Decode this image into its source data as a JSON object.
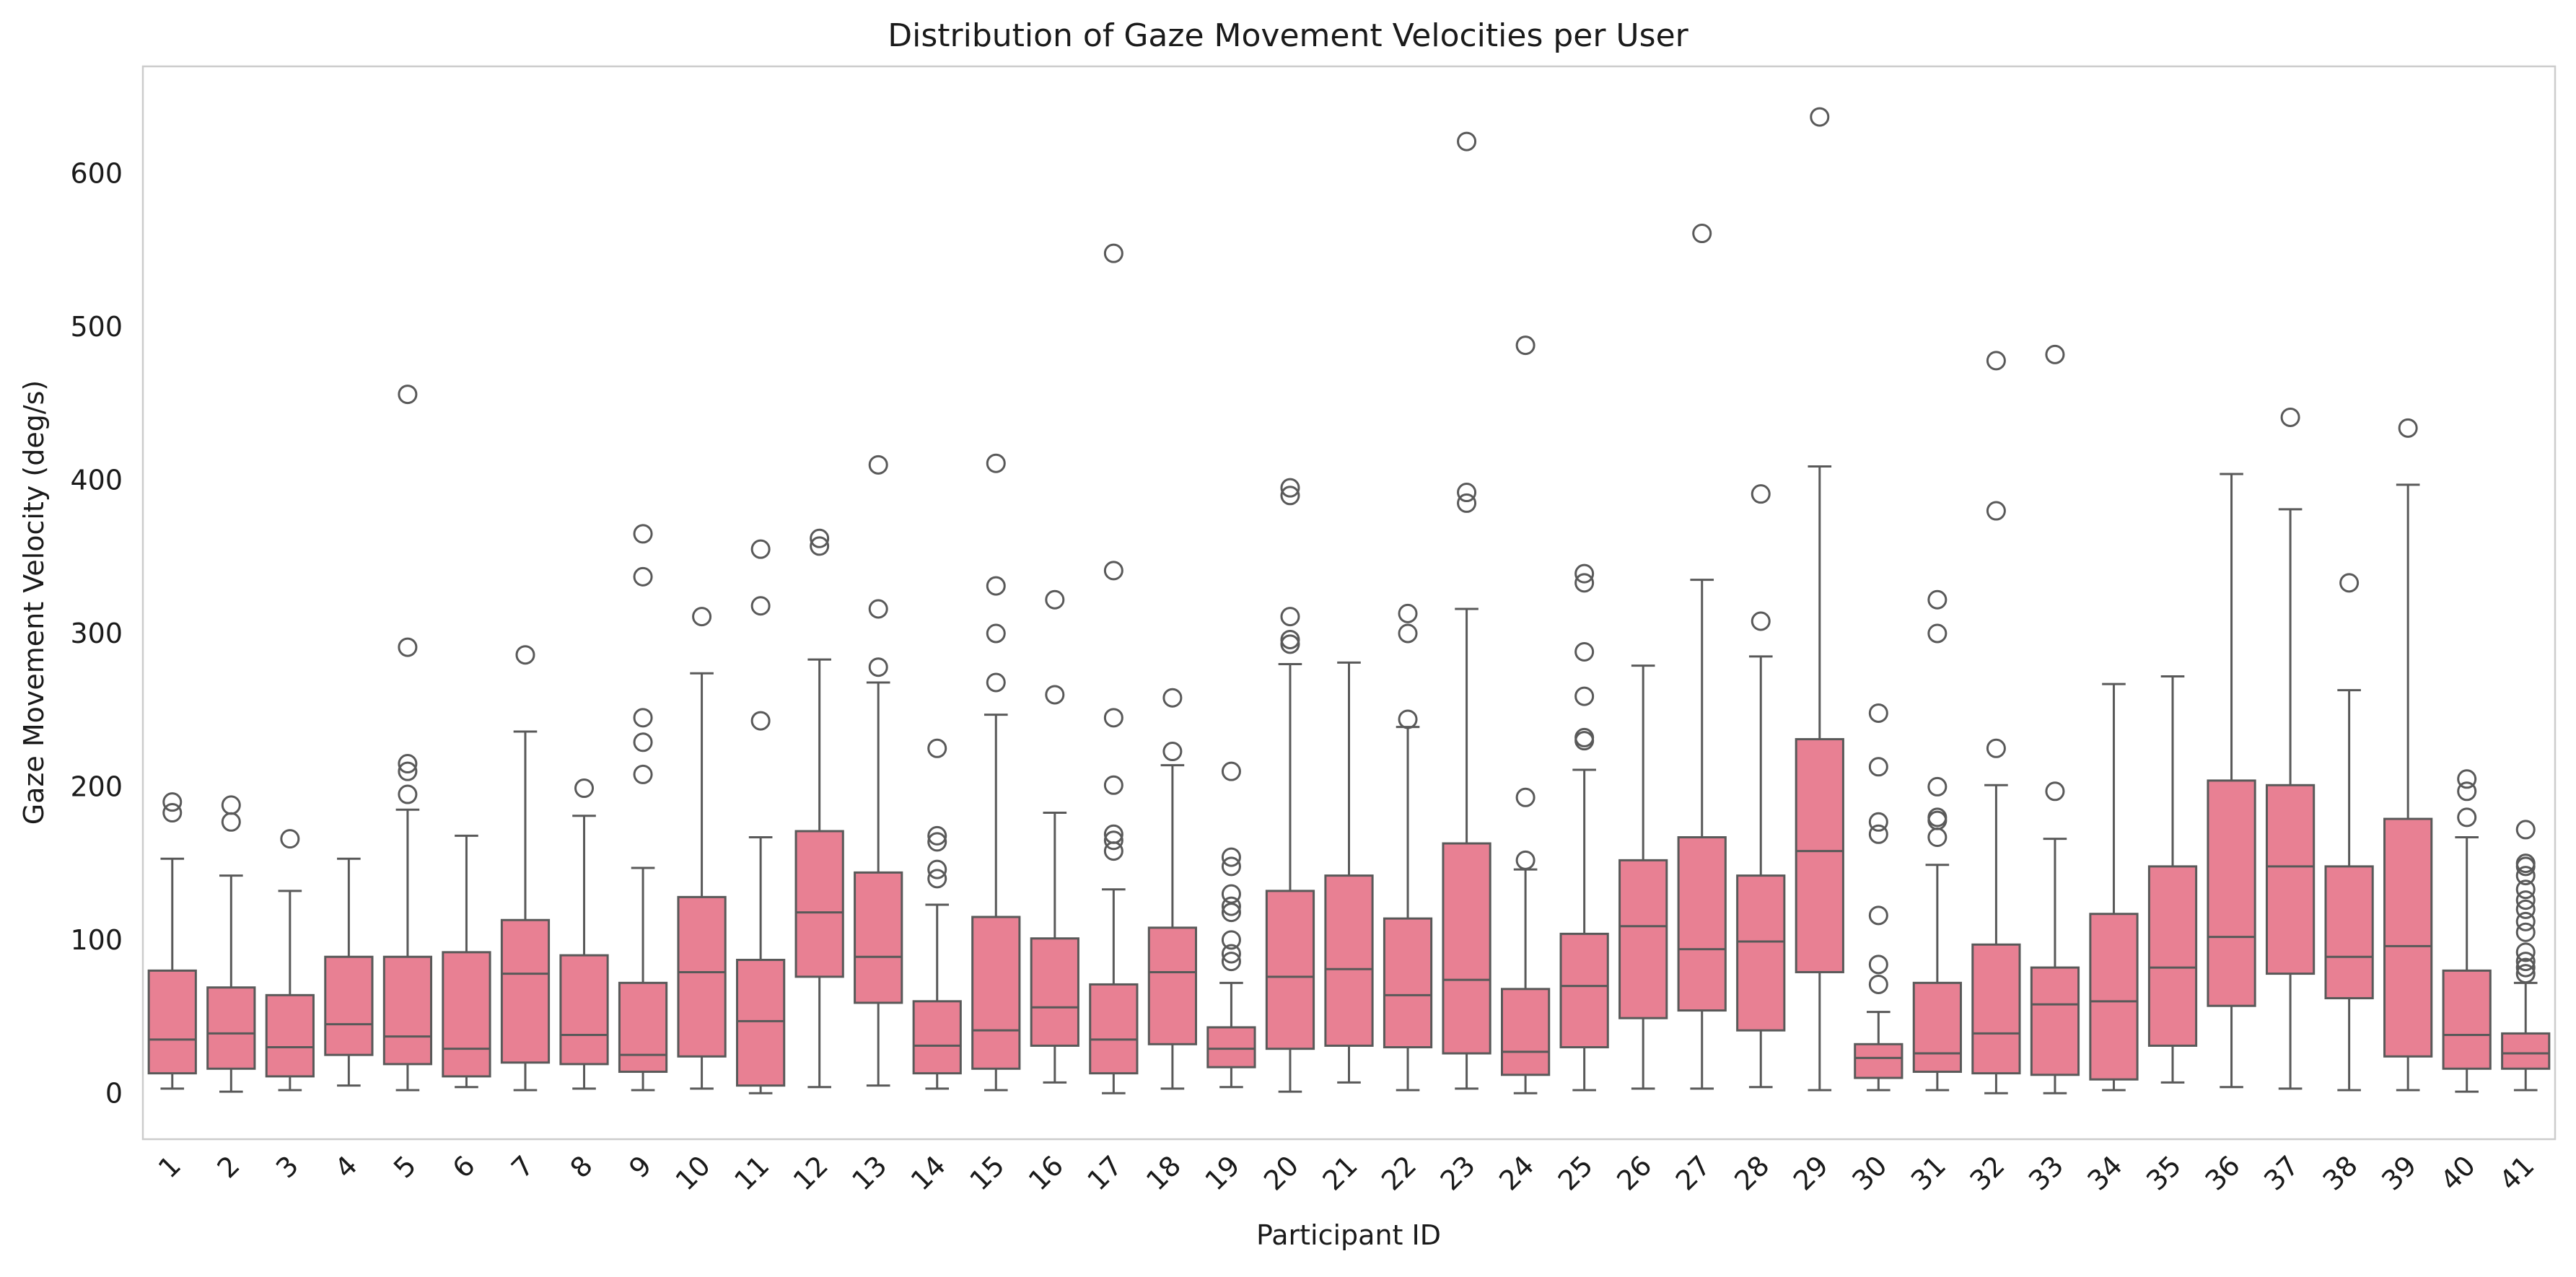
{
  "chart_data": {
    "type": "box",
    "title": "Distribution of Gaze Movement Velocities per User",
    "xlabel": "Participant ID",
    "ylabel": "Gaze Movement Velocity (deg/s)",
    "ylim": [
      -30,
      670
    ],
    "yticks": [
      0,
      100,
      200,
      300,
      400,
      500,
      600
    ],
    "grid": false,
    "box_color": "#e88093",
    "line_color": "#595959",
    "categories": [
      "1",
      "2",
      "3",
      "4",
      "5",
      "6",
      "7",
      "8",
      "9",
      "10",
      "11",
      "12",
      "13",
      "14",
      "15",
      "16",
      "17",
      "18",
      "19",
      "20",
      "21",
      "22",
      "23",
      "24",
      "25",
      "26",
      "27",
      "28",
      "29",
      "30",
      "31",
      "32",
      "33",
      "34",
      "35",
      "36",
      "37",
      "38",
      "39",
      "40",
      "41"
    ],
    "boxes": [
      {
        "id": "1",
        "whislo": 3,
        "q1": 13,
        "med": 35,
        "q3": 80,
        "whishi": 153,
        "fliers": [
          183,
          190
        ]
      },
      {
        "id": "2",
        "whislo": 1,
        "q1": 16,
        "med": 39,
        "q3": 69,
        "whishi": 142,
        "fliers": [
          177,
          188
        ]
      },
      {
        "id": "3",
        "whislo": 2,
        "q1": 11,
        "med": 30,
        "q3": 64,
        "whishi": 132,
        "fliers": [
          166
        ]
      },
      {
        "id": "4",
        "whislo": 5,
        "q1": 25,
        "med": 45,
        "q3": 89,
        "whishi": 153,
        "fliers": []
      },
      {
        "id": "5",
        "whislo": 2,
        "q1": 19,
        "med": 37,
        "q3": 89,
        "whishi": 185,
        "fliers": [
          195,
          210,
          215,
          291,
          456
        ]
      },
      {
        "id": "6",
        "whislo": 4,
        "q1": 11,
        "med": 29,
        "q3": 92,
        "whishi": 168,
        "fliers": []
      },
      {
        "id": "7",
        "whislo": 2,
        "q1": 20,
        "med": 78,
        "q3": 113,
        "whishi": 236,
        "fliers": [
          286
        ]
      },
      {
        "id": "8",
        "whislo": 3,
        "q1": 19,
        "med": 38,
        "q3": 90,
        "whishi": 181,
        "fliers": [
          199
        ]
      },
      {
        "id": "9",
        "whislo": 2,
        "q1": 14,
        "med": 25,
        "q3": 72,
        "whishi": 147,
        "fliers": [
          208,
          229,
          245,
          337,
          365
        ]
      },
      {
        "id": "10",
        "whislo": 3,
        "q1": 24,
        "med": 79,
        "q3": 128,
        "whishi": 274,
        "fliers": [
          311
        ]
      },
      {
        "id": "11",
        "whislo": 0,
        "q1": 5,
        "med": 47,
        "q3": 87,
        "whishi": 167,
        "fliers": [
          243,
          318,
          355
        ]
      },
      {
        "id": "12",
        "whislo": 4,
        "q1": 76,
        "med": 118,
        "q3": 171,
        "whishi": 283,
        "fliers": [
          357,
          362
        ]
      },
      {
        "id": "13",
        "whislo": 5,
        "q1": 59,
        "med": 89,
        "q3": 144,
        "whishi": 268,
        "fliers": [
          278,
          316,
          410
        ]
      },
      {
        "id": "14",
        "whislo": 3,
        "q1": 13,
        "med": 31,
        "q3": 60,
        "whishi": 123,
        "fliers": [
          140,
          146,
          164,
          168,
          225
        ]
      },
      {
        "id": "15",
        "whislo": 2,
        "q1": 16,
        "med": 41,
        "q3": 115,
        "whishi": 247,
        "fliers": [
          268,
          300,
          331,
          411
        ]
      },
      {
        "id": "16",
        "whislo": 7,
        "q1": 31,
        "med": 56,
        "q3": 101,
        "whishi": 183,
        "fliers": [
          260,
          322
        ]
      },
      {
        "id": "17",
        "whislo": 0,
        "q1": 13,
        "med": 35,
        "q3": 71,
        "whishi": 133,
        "fliers": [
          158,
          165,
          169,
          201,
          245,
          341,
          548
        ]
      },
      {
        "id": "18",
        "whislo": 3,
        "q1": 32,
        "med": 79,
        "q3": 108,
        "whishi": 214,
        "fliers": [
          223,
          258
        ]
      },
      {
        "id": "19",
        "whislo": 4,
        "q1": 17,
        "med": 29,
        "q3": 43,
        "whishi": 72,
        "fliers": [
          86,
          91,
          100,
          118,
          122,
          130,
          148,
          154,
          210
        ]
      },
      {
        "id": "20",
        "whislo": 1,
        "q1": 29,
        "med": 76,
        "q3": 132,
        "whishi": 280,
        "fliers": [
          293,
          296,
          311,
          390,
          395
        ]
      },
      {
        "id": "21",
        "whislo": 7,
        "q1": 31,
        "med": 81,
        "q3": 142,
        "whishi": 281,
        "fliers": []
      },
      {
        "id": "22",
        "whislo": 2,
        "q1": 30,
        "med": 64,
        "q3": 114,
        "whishi": 239,
        "fliers": [
          244,
          300,
          313
        ]
      },
      {
        "id": "23",
        "whislo": 3,
        "q1": 26,
        "med": 74,
        "q3": 163,
        "whishi": 316,
        "fliers": [
          385,
          392,
          621
        ]
      },
      {
        "id": "24",
        "whislo": 0,
        "q1": 12,
        "med": 27,
        "q3": 68,
        "whishi": 146,
        "fliers": [
          152,
          193,
          488
        ]
      },
      {
        "id": "25",
        "whislo": 2,
        "q1": 30,
        "med": 70,
        "q3": 104,
        "whishi": 211,
        "fliers": [
          230,
          232,
          259,
          288,
          333,
          339
        ]
      },
      {
        "id": "26",
        "whislo": 3,
        "q1": 49,
        "med": 109,
        "q3": 152,
        "whishi": 279,
        "fliers": []
      },
      {
        "id": "27",
        "whislo": 3,
        "q1": 54,
        "med": 94,
        "q3": 167,
        "whishi": 335,
        "fliers": [
          561
        ]
      },
      {
        "id": "28",
        "whislo": 4,
        "q1": 41,
        "med": 99,
        "q3": 142,
        "whishi": 285,
        "fliers": [
          308,
          391
        ]
      },
      {
        "id": "29",
        "whislo": 2,
        "q1": 79,
        "med": 158,
        "q3": 231,
        "whishi": 409,
        "fliers": [
          637
        ]
      },
      {
        "id": "30",
        "whislo": 2,
        "q1": 10,
        "med": 23,
        "q3": 32,
        "whishi": 53,
        "fliers": [
          71,
          84,
          116,
          169,
          177,
          213,
          248
        ]
      },
      {
        "id": "31",
        "whislo": 2,
        "q1": 14,
        "med": 26,
        "q3": 72,
        "whishi": 149,
        "fliers": [
          167,
          178,
          180,
          200,
          300,
          322
        ]
      },
      {
        "id": "32",
        "whislo": 0,
        "q1": 13,
        "med": 39,
        "q3": 97,
        "whishi": 201,
        "fliers": [
          225,
          380,
          478
        ]
      },
      {
        "id": "33",
        "whislo": 0,
        "q1": 12,
        "med": 58,
        "q3": 82,
        "whishi": 166,
        "fliers": [
          197,
          482
        ]
      },
      {
        "id": "34",
        "whislo": 2,
        "q1": 9,
        "med": 60,
        "q3": 117,
        "whishi": 267,
        "fliers": []
      },
      {
        "id": "35",
        "whislo": 7,
        "q1": 31,
        "med": 82,
        "q3": 148,
        "whishi": 272,
        "fliers": []
      },
      {
        "id": "36",
        "whislo": 4,
        "q1": 57,
        "med": 102,
        "q3": 204,
        "whishi": 404,
        "fliers": []
      },
      {
        "id": "37",
        "whislo": 3,
        "q1": 78,
        "med": 148,
        "q3": 201,
        "whishi": 381,
        "fliers": [
          441
        ]
      },
      {
        "id": "38",
        "whislo": 2,
        "q1": 62,
        "med": 89,
        "q3": 148,
        "whishi": 263,
        "fliers": [
          333
        ]
      },
      {
        "id": "39",
        "whislo": 2,
        "q1": 24,
        "med": 96,
        "q3": 179,
        "whishi": 397,
        "fliers": [
          434
        ]
      },
      {
        "id": "40",
        "whislo": 1,
        "q1": 16,
        "med": 38,
        "q3": 80,
        "whishi": 167,
        "fliers": [
          180,
          197,
          205
        ]
      },
      {
        "id": "41",
        "whislo": 2,
        "q1": 16,
        "med": 26,
        "q3": 39,
        "whishi": 72,
        "fliers": [
          78,
          82,
          86,
          92,
          105,
          112,
          120,
          126,
          133,
          142,
          148,
          150,
          172
        ]
      }
    ]
  }
}
